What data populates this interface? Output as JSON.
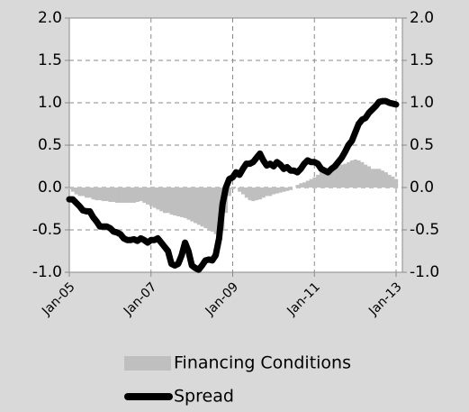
{
  "chart_data": {
    "type": "line",
    "categories": [
      "Jan-05",
      null,
      null,
      null,
      null,
      null,
      null,
      null,
      null,
      null,
      null,
      null,
      null,
      null,
      null,
      null,
      null,
      null,
      null,
      null,
      null,
      null,
      null,
      null,
      "Jan-07",
      null,
      null,
      null,
      null,
      null,
      null,
      null,
      null,
      null,
      null,
      null,
      null,
      null,
      null,
      null,
      null,
      null,
      null,
      null,
      null,
      null,
      null,
      null,
      "Jan-09",
      null,
      null,
      null,
      null,
      null,
      null,
      null,
      null,
      null,
      null,
      null,
      null,
      null,
      null,
      null,
      null,
      null,
      null,
      null,
      null,
      null,
      null,
      null,
      "Jan-11",
      null,
      null,
      null,
      null,
      null,
      null,
      null,
      null,
      null,
      null,
      null,
      null,
      null,
      null,
      null,
      null,
      null,
      null,
      null,
      null,
      null,
      null,
      null,
      "Jan-13"
    ],
    "series": [
      {
        "name": "Financing Conditions",
        "type": "bar",
        "color": "#bfbfbf",
        "values": [
          -0.02,
          -0.05,
          -0.08,
          -0.1,
          -0.1,
          -0.12,
          -0.12,
          -0.14,
          -0.15,
          -0.15,
          -0.16,
          -0.16,
          -0.17,
          -0.17,
          -0.18,
          -0.18,
          -0.18,
          -0.18,
          -0.18,
          -0.18,
          -0.17,
          -0.16,
          -0.18,
          -0.2,
          -0.22,
          -0.24,
          -0.26,
          -0.28,
          -0.3,
          -0.3,
          -0.32,
          -0.33,
          -0.34,
          -0.35,
          -0.36,
          -0.38,
          -0.4,
          -0.42,
          -0.44,
          -0.46,
          -0.48,
          -0.5,
          -0.52,
          -0.55,
          -0.58,
          -0.5,
          -0.3,
          -0.1,
          -0.02,
          0,
          -0.05,
          -0.08,
          -0.12,
          -0.15,
          -0.16,
          -0.15,
          -0.14,
          -0.12,
          -0.1,
          -0.1,
          -0.08,
          -0.07,
          -0.06,
          -0.05,
          -0.04,
          -0.03,
          0,
          0.03,
          0.05,
          0.06,
          0.08,
          0.1,
          0.12,
          0.15,
          0.18,
          0.2,
          0.22,
          0.22,
          0.22,
          0.25,
          0.27,
          0.28,
          0.3,
          0.32,
          0.33,
          0.32,
          0.3,
          0.27,
          0.25,
          0.22,
          0.22,
          0.22,
          0.2,
          0.18,
          0.15,
          0.13,
          0.1
        ]
      },
      {
        "name": "Spread",
        "type": "line",
        "color": "#000000",
        "values": [
          -0.14,
          -0.14,
          -0.18,
          -0.22,
          -0.27,
          -0.28,
          -0.28,
          -0.35,
          -0.4,
          -0.46,
          -0.46,
          -0.46,
          -0.48,
          -0.52,
          -0.53,
          -0.55,
          -0.6,
          -0.62,
          -0.62,
          -0.61,
          -0.63,
          -0.6,
          -0.62,
          -0.65,
          -0.62,
          -0.62,
          -0.6,
          -0.65,
          -0.7,
          -0.75,
          -0.9,
          -0.92,
          -0.9,
          -0.8,
          -0.65,
          -0.75,
          -0.92,
          -0.95,
          -0.97,
          -0.92,
          -0.86,
          -0.85,
          -0.86,
          -0.8,
          -0.6,
          -0.2,
          0,
          0.1,
          0.12,
          0.18,
          0.15,
          0.22,
          0.28,
          0.28,
          0.3,
          0.35,
          0.4,
          0.32,
          0.26,
          0.28,
          0.25,
          0.3,
          0.27,
          0.22,
          0.24,
          0.2,
          0.2,
          0.18,
          0.22,
          0.28,
          0.32,
          0.3,
          0.3,
          0.28,
          0.22,
          0.2,
          0.18,
          0.22,
          0.25,
          0.3,
          0.35,
          0.42,
          0.5,
          0.55,
          0.65,
          0.75,
          0.8,
          0.82,
          0.88,
          0.92,
          0.96,
          1.01,
          1.02,
          1.02,
          1,
          0.99,
          0.98
        ]
      }
    ],
    "ylim": [
      -1,
      2
    ],
    "yticks": [
      {
        "value": -1,
        "label": "-1.0"
      },
      -0.5,
      {
        "value": 0,
        "label": "0.0"
      },
      0.5,
      {
        "value": 1,
        "label": "1.0"
      },
      1.5,
      {
        "value": 2,
        "label": "2.0"
      }
    ],
    "y2lim": [
      -1,
      2
    ],
    "y2ticks": [
      {
        "value": -1,
        "label": "-1.0"
      },
      -0.5,
      {
        "value": 0,
        "label": "0.0"
      },
      0.5,
      {
        "value": 1,
        "label": "1.0"
      },
      1.5,
      {
        "value": 2,
        "label": "2.0"
      }
    ],
    "grid": true
  }
}
